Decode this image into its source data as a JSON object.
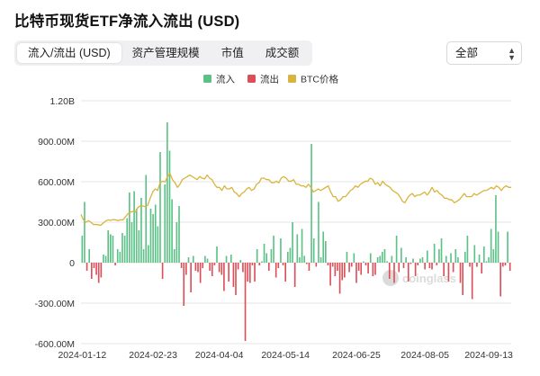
{
  "header": {
    "title": "比特币现货ETF净流入流出 (USD)"
  },
  "tabs": [
    {
      "label": "流入/流出 (USD)",
      "active": true
    },
    {
      "label": "资产管理规模",
      "active": false
    },
    {
      "label": "市值",
      "active": false
    },
    {
      "label": "成交额",
      "active": false
    }
  ],
  "filter": {
    "value": "全部"
  },
  "watermark": {
    "text": "coinglass"
  },
  "colors": {
    "inflow": "#5cc186",
    "outflow": "#dc4f57",
    "btc": "#d9b43c",
    "grid": "#e6e6e6"
  },
  "chart_data": {
    "type": "bar",
    "legend_placement": "top-center",
    "grid": true,
    "ylim": [
      -600,
      1200
    ],
    "y_ticks": [
      "1.20B",
      "900.00M",
      "600.00M",
      "300.00M",
      "0",
      "-300.00M",
      "-600.00M"
    ],
    "y_tick_values": [
      1200,
      900,
      600,
      300,
      0,
      -300,
      -600
    ],
    "x_tick_labels": [
      "2024-01-12",
      "2024-02-23",
      "2024-04-04",
      "2024-05-14",
      "2024-06-25",
      "2024-08-05",
      "2024-09-13"
    ],
    "x_tick_positions": [
      0,
      30,
      58,
      86,
      116,
      145,
      172
    ],
    "series": [
      {
        "name": "流入",
        "kind": "bar"
      },
      {
        "name": "流出",
        "kind": "bar"
      },
      {
        "name": "BTC价格",
        "kind": "line"
      }
    ],
    "flows_usd_m": [
      200,
      450,
      -60,
      100,
      -120,
      -40,
      -90,
      -150,
      -110,
      60,
      50,
      240,
      210,
      200,
      -20,
      100,
      80,
      220,
      200,
      330,
      520,
      300,
      530,
      400,
      240,
      480,
      100,
      650,
      130,
      400,
      360,
      430,
      270,
      820,
      -120,
      580,
      1040,
      830,
      470,
      100,
      300,
      420,
      -40,
      -320,
      -90,
      40,
      -220,
      50,
      -60,
      -70,
      -150,
      -40,
      50,
      30,
      -60,
      -100,
      -20,
      120,
      -70,
      -90,
      -210,
      50,
      -140,
      60,
      -180,
      -240,
      -50,
      20,
      -70,
      -580,
      -140,
      -150,
      -20,
      -140,
      100,
      -20,
      10,
      140,
      70,
      -60,
      100,
      200,
      -110,
      -40,
      180,
      -20,
      -140,
      80,
      110,
      300,
      -180,
      210,
      40,
      250,
      50,
      -10,
      -60,
      880,
      180,
      -30,
      450,
      40,
      230,
      160,
      -20,
      -170,
      -30,
      -100,
      -60,
      -230,
      -130,
      -110,
      80,
      -70,
      -30,
      70,
      -150,
      -60,
      -90,
      10,
      -20,
      -80,
      70,
      -100,
      -90,
      40,
      50,
      80,
      100,
      10,
      -120,
      50,
      -150,
      200,
      -70,
      110,
      -40,
      40,
      -140,
      -10,
      30,
      -100,
      -20,
      30,
      40,
      -50,
      90,
      -40,
      -50,
      140,
      -20,
      100,
      180,
      -100,
      50,
      -140,
      70,
      -70,
      100,
      40,
      -150,
      -240,
      80,
      200,
      -30,
      -270,
      130,
      -30,
      60,
      -80,
      120,
      10,
      40,
      250,
      100,
      500,
      230,
      -250,
      -30,
      -20,
      230,
      -60
    ],
    "btc_price_usd_k": [
      46.5,
      43,
      41.5,
      42.5,
      41.5,
      40,
      40,
      39.8,
      39.5,
      41,
      42.3,
      43,
      42.7,
      43.2,
      43,
      42.5,
      43,
      43,
      45,
      47,
      48,
      48.5,
      48,
      51,
      52,
      52,
      51.5,
      52.5,
      57,
      61,
      63,
      62,
      67,
      68,
      67.5,
      71,
      73,
      69,
      67,
      64,
      66,
      69,
      70,
      71,
      72,
      71,
      70,
      69,
      71,
      70,
      69.5,
      72,
      70,
      69,
      66,
      64,
      64,
      62,
      65,
      63,
      63,
      64,
      61,
      60,
      58,
      60,
      61,
      63,
      64,
      62,
      63,
      66,
      67,
      70,
      70,
      69,
      69,
      67,
      67,
      68,
      67,
      70,
      71,
      70,
      68,
      68,
      69,
      66,
      66,
      65,
      65,
      64,
      66,
      64,
      61,
      62,
      63,
      62,
      63,
      64,
      65,
      61,
      58,
      58,
      55,
      56,
      58,
      58,
      60,
      62,
      63,
      65,
      64,
      66,
      67,
      68,
      68,
      70,
      69,
      66,
      67,
      65,
      68,
      66,
      65,
      64,
      62,
      61,
      60,
      58,
      55,
      54,
      57,
      59,
      60,
      58,
      59,
      59,
      60,
      61,
      59,
      61,
      64,
      61,
      62,
      60,
      59,
      57,
      57,
      56,
      56,
      54,
      55,
      56,
      58,
      60,
      58,
      58,
      58,
      60,
      59,
      60,
      61,
      62,
      62,
      63,
      64,
      63,
      65,
      64,
      62,
      64,
      65,
      64,
      64
    ],
    "btc_price_axis_range_k": [
      -37,
      120
    ]
  }
}
